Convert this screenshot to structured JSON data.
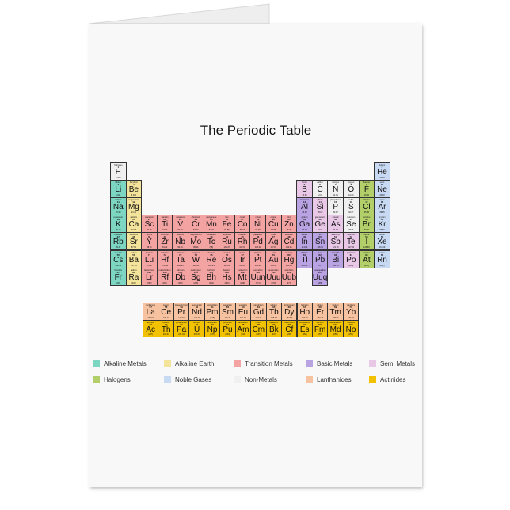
{
  "title": "The Periodic Table",
  "colors": {
    "alkali": "#7dd6c2",
    "ae": "#f4e39a",
    "trans": "#f4a3a3",
    "basic": "#b9a3e3",
    "semi": "#e8c8e6",
    "hal": "#b3cf6a",
    "noble": "#c8daf3",
    "non": "#f0f0f0",
    "lan": "#f6c2a0",
    "act": "#f2c200"
  },
  "legend": [
    {
      "key": "alkali",
      "label": "Alkaline Metals"
    },
    {
      "key": "ae",
      "label": "Alkaline Earth"
    },
    {
      "key": "trans",
      "label": "Transition Metals"
    },
    {
      "key": "basic",
      "label": "Basic Metals"
    },
    {
      "key": "semi",
      "label": "Semi Metals"
    },
    {
      "key": "hal",
      "label": "Halogens"
    },
    {
      "key": "noble",
      "label": "Noble Gases"
    },
    {
      "key": "non",
      "label": "Non-Metals"
    },
    {
      "key": "lan",
      "label": "Lanthanides"
    },
    {
      "key": "act",
      "label": "Actinides"
    }
  ],
  "elements": [
    "H|1|hydrogen|1.008|non|1|1",
    "He|2|helium|4.003|noble|1|18",
    "Li|3|lithium|6.941|alkali|2|1",
    "Be|4|beryllium|9.012|ae|2|2",
    "B|5|boron|10.81|semi|2|13",
    "C|6|carbon|12.01|non|2|14",
    "N|7|nitrogen|14.01|non|2|15",
    "O|8|oxygen|16.00|non|2|16",
    "F|9|fluorine|19.00|hal|2|17",
    "Ne|10|neon|20.18|noble|2|18",
    "Na|11|sodium|22.99|alkali|3|1",
    "Mg|12|magnesium|24.31|ae|3|2",
    "Al|13|aluminium|26.98|basic|3|13",
    "Si|14|silicon|28.09|semi|3|14",
    "P|15|phosphorus|30.97|non|3|15",
    "S|16|sulfur|32.07|non|3|16",
    "Cl|17|chlorine|35.45|hal|3|17",
    "Ar|18|argon|39.95|noble|3|18",
    "K|19|potassium|39.10|alkali|4|1",
    "Ca|20|calcium|40.08|ae|4|2",
    "Sc|21|scandium|44.96|trans|4|3",
    "Ti|22|titanium|47.87|trans|4|4",
    "V|23|vanadium|50.94|trans|4|5",
    "Cr|24|chromium|52.00|trans|4|6",
    "Mn|25|manganese|54.94|trans|4|7",
    "Fe|26|iron|55.85|trans|4|8",
    "Co|27|cobalt|58.93|trans|4|9",
    "Ni|28|nickel|58.69|trans|4|10",
    "Cu|29|copper|63.55|trans|4|11",
    "Zn|30|zinc|65.39|trans|4|12",
    "Ga|31|gallium|69.72|basic|4|13",
    "Ge|32|germanium|72.61|semi|4|14",
    "As|33|arsenic|74.92|semi|4|15",
    "Se|34|selenium|78.96|non|4|16",
    "Br|35|bromine|79.90|hal|4|17",
    "Kr|36|krypton|83.80|noble|4|18",
    "Rb|37|rubidium|85.47|alkali|5|1",
    "Sr|38|strontium|87.62|ae|5|2",
    "Y|39|yttrium|88.91|trans|5|3",
    "Zr|40|zirconium|91.22|trans|5|4",
    "Nb|41|niobium|92.91|trans|5|5",
    "Mo|42|molybdenum|95.94|trans|5|6",
    "Tc|43|technetium|(98)|trans|5|7",
    "Ru|44|ruthenium|101.07|trans|5|8",
    "Rh|45|rhodium|102.91|trans|5|9",
    "Pd|46|palladium|106.42|trans|5|10",
    "Ag|47|silver|107.87|trans|5|11",
    "Cd|48|cadmium|112.41|trans|5|12",
    "In|49|indium|114.82|basic|5|13",
    "Sn|50|tin|118.71|basic|5|14",
    "Sb|51|antimony|121.76|semi|5|15",
    "Te|52|tellurium|127.60|semi|5|16",
    "I|53|iodine|126.90|hal|5|17",
    "Xe|54|xenon|131.29|noble|5|18",
    "Cs|55|caesium|132.91|alkali|6|1",
    "Ba|56|barium|137.33|ae|6|2",
    "Lu|71|lutetium|174.97|trans|6|3",
    "Hf|72|hafnium|178.49|trans|6|4",
    "Ta|73|tantalum|180.95|trans|6|5",
    "W|74|tungsten|183.84|trans|6|6",
    "Re|75|rhenium|186.21|trans|6|7",
    "Os|76|osmium|190.23|trans|6|8",
    "Ir|77|iridium|192.22|trans|6|9",
    "Pt|78|platinum|195.08|trans|6|10",
    "Au|79|gold|196.97|trans|6|11",
    "Hg|80|mercury|200.59|trans|6|12",
    "Tl|81|thallium|204.38|basic|6|13",
    "Pb|82|lead|207.2|basic|6|14",
    "Bi|83|bismuth|208.98|basic|6|15",
    "Po|84|polonium|(209)|semi|6|16",
    "At|85|astatine|(210)|hal|6|17",
    "Rn|86|radon|(222)|noble|6|18",
    "Fr|87|francium|(223)|alkali|7|1",
    "Ra|88|radium|(226)|ae|7|2",
    "Lr|103|lawrencium|(262)|trans|7|3",
    "Rf|104|rutherfordium|(261)|trans|7|4",
    "Db|105|dubnium|(262)|trans|7|5",
    "Sg|106|seaborgium|(266)|trans|7|6",
    "Bh|107|bohrium|(264)|trans|7|7",
    "Hs|108|hassium|(269)|trans|7|8",
    "Mt|109|meitnerium|(268)|trans|7|9",
    "Uun|110|ununnilium|(271)|trans|7|10",
    "Uuu|111|unununium|(272)|trans|7|11",
    "Uub|112|ununbium|(277)|trans|7|12",
    "Uuq|114|ununquadium|(285)|basic|7|14"
  ],
  "lanthanides": [
    "La|57|lanthanum|138.91",
    "Ce|58|cerium|140.12",
    "Pr|59|praseodymium|140.91",
    "Nd|60|neodymium|144.24",
    "Pm|61|promethium|(145)",
    "Sm|62|samarium|150.36",
    "Eu|63|europium|151.96",
    "Gd|64|gadolinium|157.25",
    "Tb|65|terbium|158.93",
    "Dy|66|dysprosium|162.50",
    "Ho|67|holmium|164.93",
    "Er|68|erbium|167.26",
    "Tm|69|thulium|168.93",
    "Yb|70|ytterbium|173.04"
  ],
  "actinides": [
    "Ac|89|actinium|(227)",
    "Th|90|thorium|232.04",
    "Pa|91|protactinium|231.04",
    "U|92|uranium|238.03",
    "Np|93|neptunium|(237)",
    "Pu|94|plutonium|(244)",
    "Am|95|americium|(243)",
    "Cm|96|curium|(247)",
    "Bk|97|berkelium|(247)",
    "Cf|98|californium|(251)",
    "Es|99|einsteinium|(252)",
    "Fm|100|fermium|(257)",
    "Md|101|mendelevium|(258)",
    "No|102|nobelium|(259)"
  ]
}
